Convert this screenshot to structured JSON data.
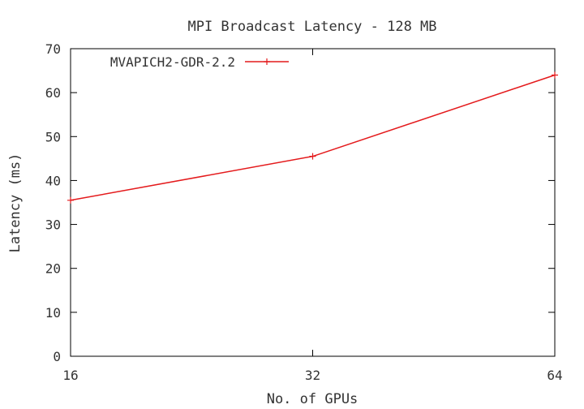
{
  "chart_data": {
    "type": "line",
    "title": "MPI Broadcast Latency - 128 MB",
    "xlabel": "No. of GPUs",
    "ylabel": "Latency (ms)",
    "x_scale": "log2",
    "x": [
      16,
      32,
      64
    ],
    "x_ticks": [
      "16",
      "32",
      "64"
    ],
    "ylim": [
      0,
      70
    ],
    "y_ticks": [
      "0",
      "10",
      "20",
      "30",
      "40",
      "50",
      "60",
      "70"
    ],
    "grid": false,
    "legend_position": "top-left",
    "series": [
      {
        "name": "MVAPICH2-GDR-2.2",
        "color": "#e41a1c",
        "values": [
          35.5,
          45.5,
          64
        ]
      }
    ]
  }
}
